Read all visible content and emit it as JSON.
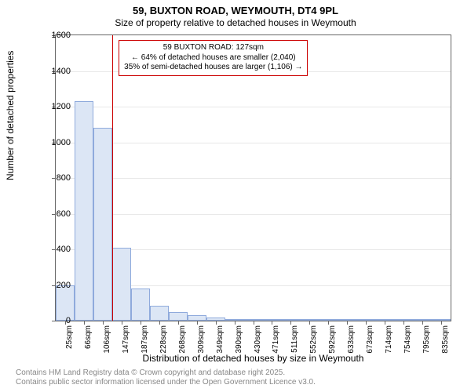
{
  "title": "59, BUXTON ROAD, WEYMOUTH, DT4 9PL",
  "subtitle": "Size of property relative to detached houses in Weymouth",
  "ylabel": "Number of detached properties",
  "xlabel": "Distribution of detached houses by size in Weymouth",
  "footer_line1": "Contains HM Land Registry data © Crown copyright and database right 2025.",
  "footer_line2": "Contains public sector information licensed under the Open Government Licence v3.0.",
  "chart": {
    "type": "histogram",
    "ylim": [
      0,
      1600
    ],
    "yticks": [
      0,
      200,
      400,
      600,
      800,
      1000,
      1200,
      1400,
      1600
    ],
    "xticks": [
      "25sqm",
      "66sqm",
      "106sqm",
      "147sqm",
      "187sqm",
      "228sqm",
      "268sqm",
      "309sqm",
      "349sqm",
      "390sqm",
      "430sqm",
      "471sqm",
      "511sqm",
      "552sqm",
      "592sqm",
      "633sqm",
      "673sqm",
      "714sqm",
      "754sqm",
      "795sqm",
      "835sqm"
    ],
    "bars": [
      200,
      1230,
      1080,
      410,
      180,
      85,
      50,
      30,
      18,
      10,
      8,
      6,
      5,
      4,
      3,
      3,
      2,
      2,
      2,
      1,
      1
    ],
    "bar_fill": "#dce6f5",
    "bar_border": "#8faadc",
    "grid_color": "#e8e8e8",
    "background": "#ffffff",
    "marker": {
      "position_sqm": 127,
      "color": "#cc0000"
    },
    "callout": {
      "border_color": "#cc0000",
      "background": "#ffffff",
      "lines": [
        "59 BUXTON ROAD: 127sqm",
        "← 64% of detached houses are smaller (2,040)",
        "35% of semi-detached houses are larger (1,106) →"
      ]
    }
  },
  "fonts": {
    "title_size": 13,
    "subtitle_size": 12,
    "axis_label_size": 12,
    "tick_size": 11,
    "xtick_size": 10,
    "callout_size": 10,
    "footer_size": 10
  }
}
